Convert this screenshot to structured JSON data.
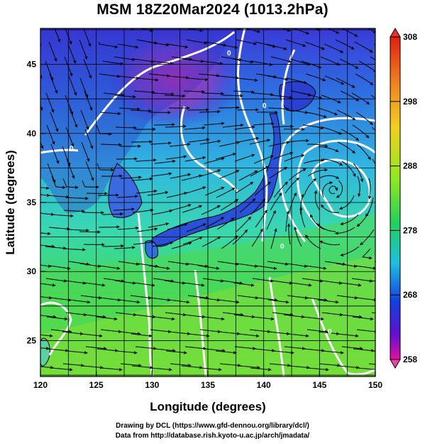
{
  "title": "MSM 18Z20Mar2024 (1013.2hPa)",
  "x_axis": {
    "title": "Longitude (degrees)",
    "ticks": [
      "120",
      "125",
      "130",
      "135",
      "140",
      "145",
      "150"
    ],
    "range": [
      120,
      150
    ]
  },
  "y_axis": {
    "title": "Latitude  (degrees)",
    "ticks": [
      "25",
      "30",
      "35",
      "40",
      "45"
    ],
    "range": [
      22.4,
      47.6
    ]
  },
  "colorbar": {
    "labels": [
      "308",
      "298",
      "288",
      "278",
      "268",
      "258"
    ],
    "range": [
      258,
      308
    ],
    "colors": [
      "#c000c0",
      "#1010e0",
      "#20c0e0",
      "#20d060",
      "#a0f020",
      "#f0c020",
      "#e02010"
    ]
  },
  "contour_labels": [
    "0",
    "0",
    "0",
    "0",
    "0"
  ],
  "credits": {
    "line1": "Drawing by DCL (https://www.gfd-dennou.org/library/dcl/)",
    "line2": "Data from http://database.rish.kyoto-u.ac.jp/arch/jmadata/"
  }
}
